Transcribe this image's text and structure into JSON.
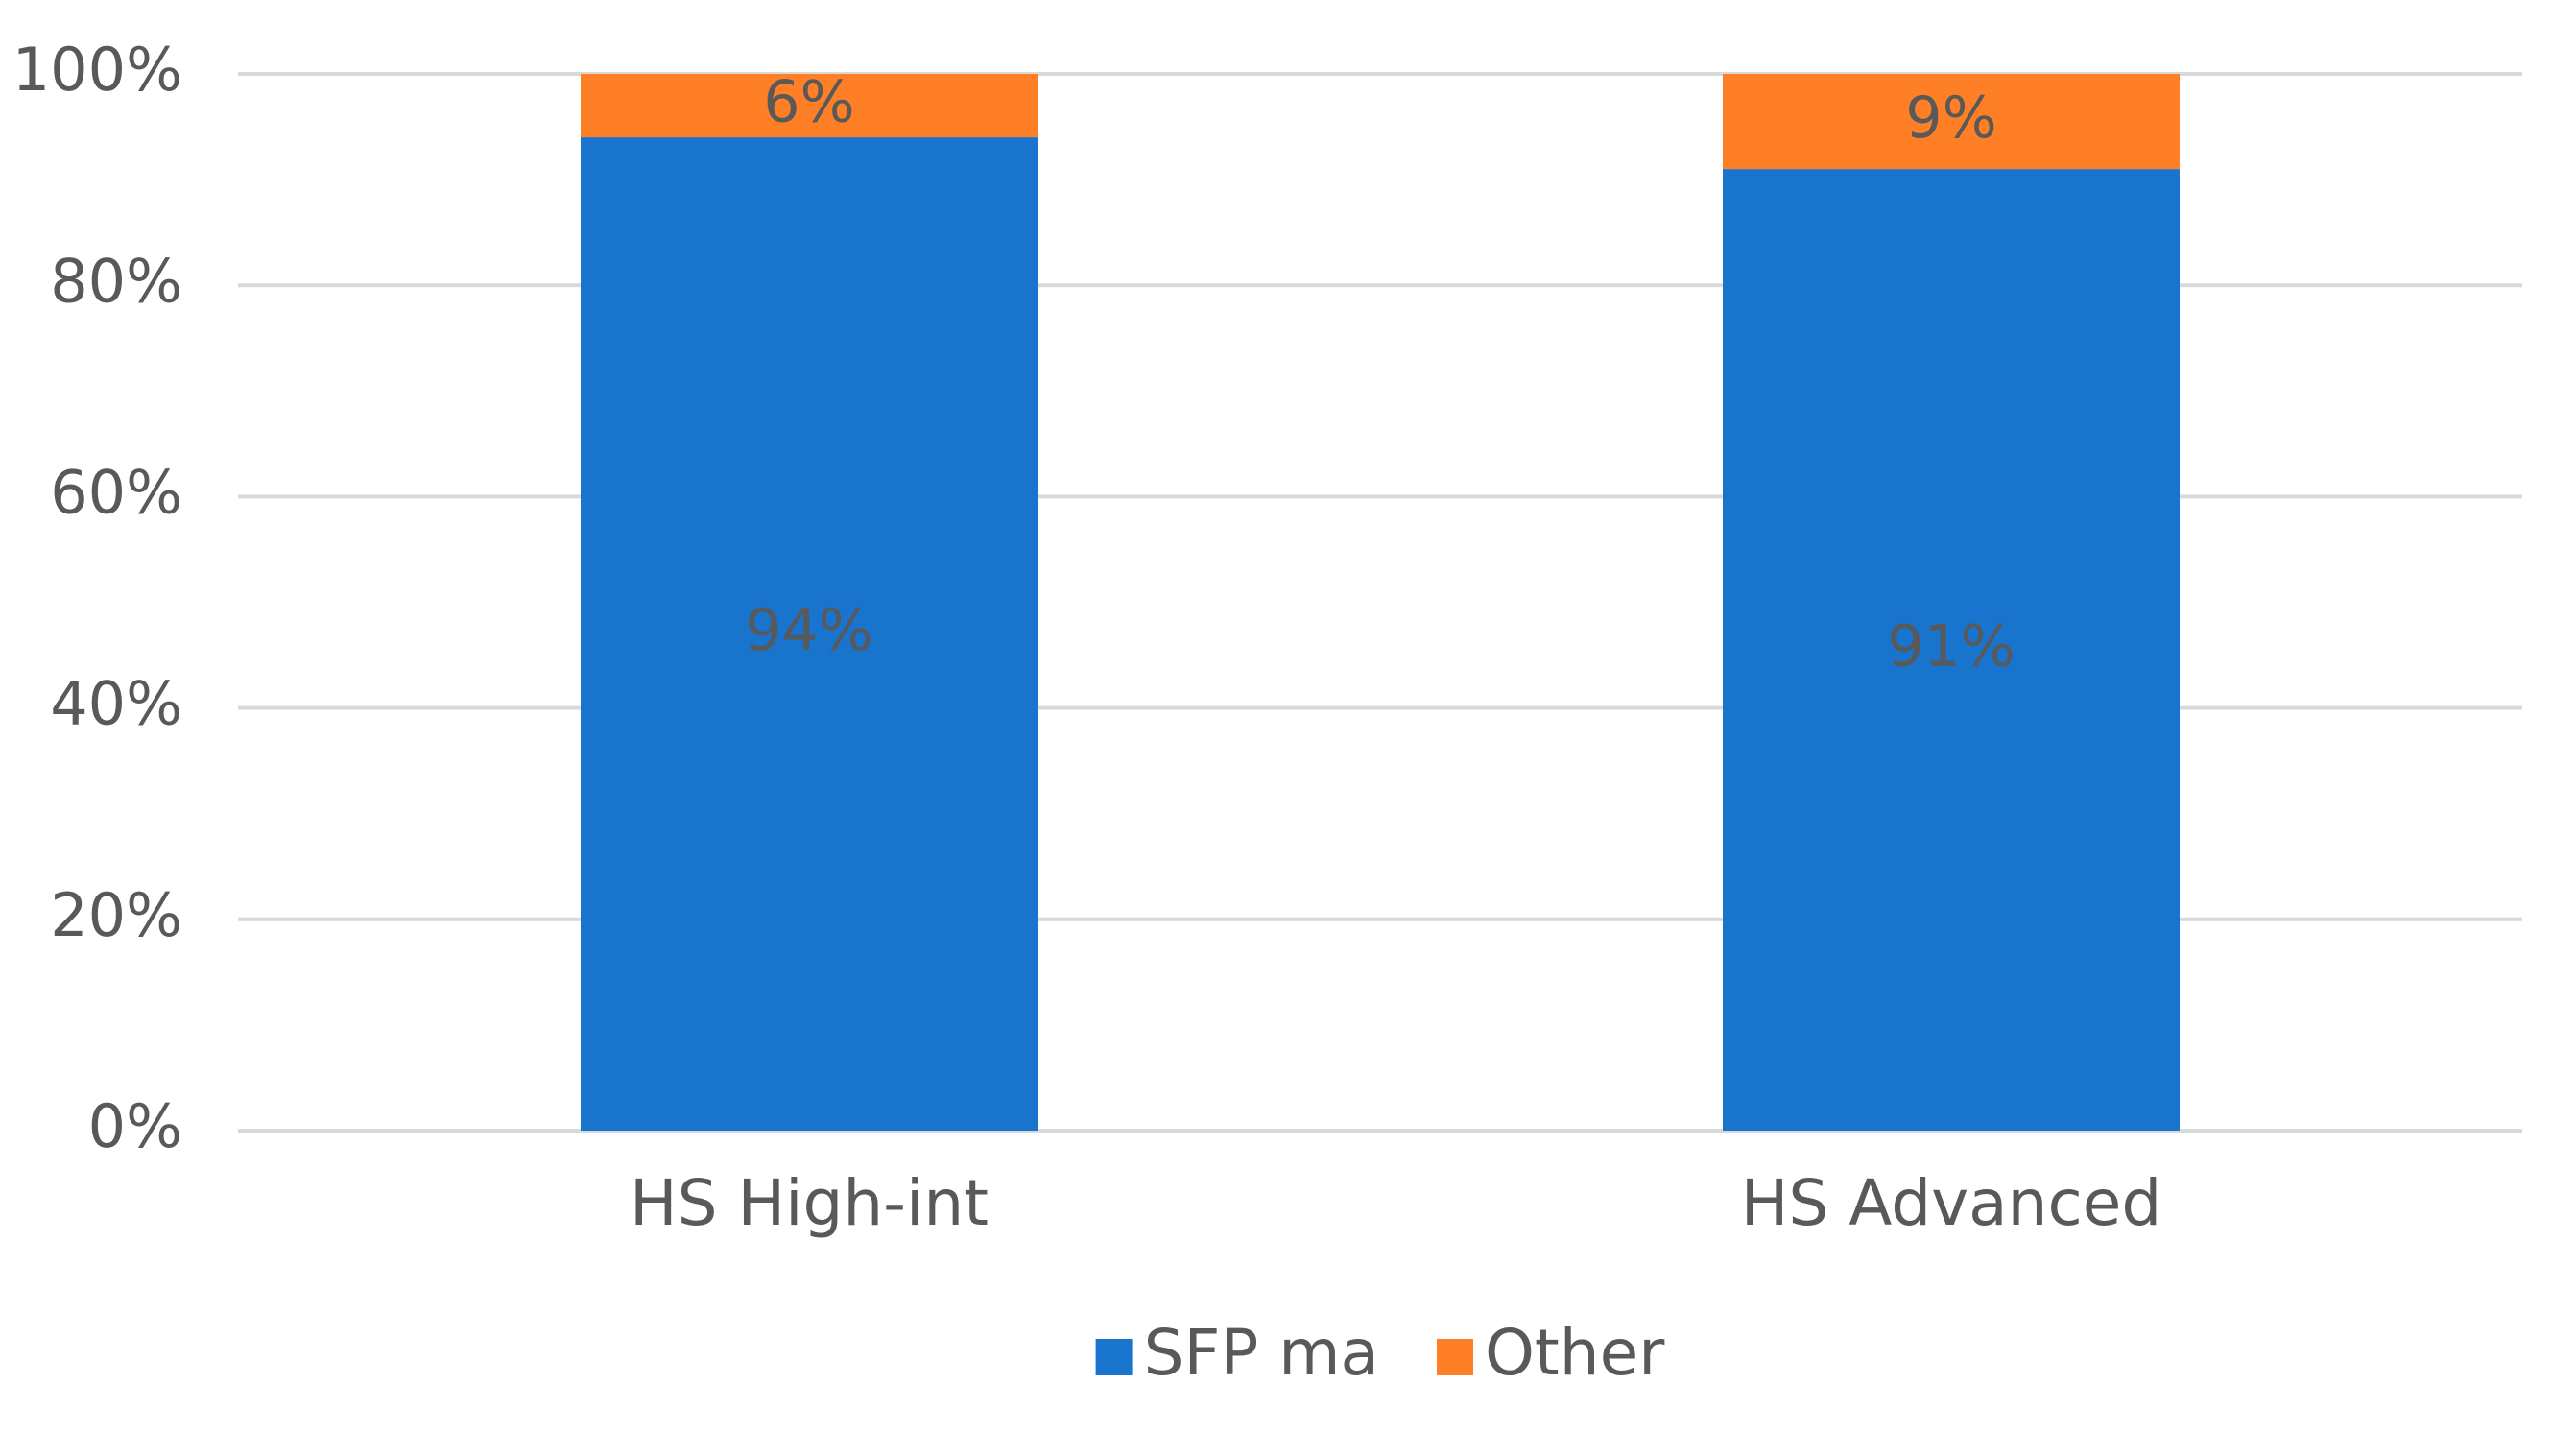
{
  "chart_data": {
    "type": "stacked-bar",
    "categories": [
      "HS High-int",
      "HS Advanced"
    ],
    "series": [
      {
        "name": "SFP ma",
        "color": "#1874cd",
        "values": [
          94,
          91
        ],
        "value_labels": [
          "94%",
          "91%"
        ]
      },
      {
        "name": "Other",
        "color": "#ff7f27",
        "values": [
          6,
          9
        ],
        "value_labels": [
          "6%",
          "9%"
        ]
      }
    ],
    "ylim": [
      0,
      100
    ],
    "yticks": [
      {
        "value": 0,
        "label": "0%"
      },
      {
        "value": 20,
        "label": "20%"
      },
      {
        "value": 40,
        "label": "40%"
      },
      {
        "value": 60,
        "label": "60%"
      },
      {
        "value": 80,
        "label": "80%"
      },
      {
        "value": 100,
        "label": "100%"
      }
    ],
    "grid": true,
    "legend": "bottom"
  }
}
